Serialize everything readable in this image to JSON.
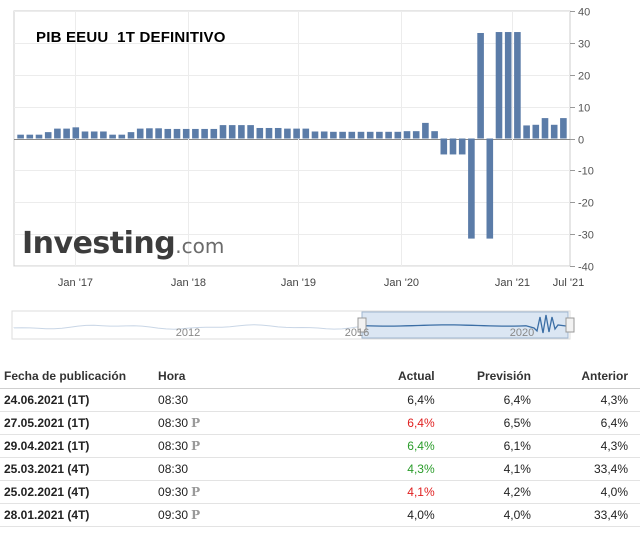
{
  "chart_title": "PIB EEUU  1T DEFINITIVO",
  "logo": {
    "name": "Investing",
    "suffix": ".com"
  },
  "chart_data": {
    "type": "bar",
    "title": "PIB EEUU  1T DEFINITIVO",
    "ylim": [
      -40,
      40
    ],
    "yticks": [
      40,
      30,
      20,
      10,
      0,
      -10,
      -20,
      -30,
      -40
    ],
    "xtick_labels": [
      "Jan '17",
      "Jan '18",
      "Jan '19",
      "Jan '20",
      "Jan '21",
      "Jul '21"
    ],
    "grid": true,
    "values": [
      1.2,
      1.2,
      1.2,
      2.0,
      3.1,
      3.1,
      3.5,
      2.2,
      2.2,
      2.2,
      1.2,
      1.2,
      2.0,
      3.1,
      3.2,
      3.2,
      3.0,
      3.0,
      3.0,
      3.0,
      3.0,
      3.0,
      4.2,
      4.2,
      4.2,
      4.2,
      3.3,
      3.3,
      3.3,
      3.1,
      3.1,
      3.1,
      2.2,
      2.2,
      2.1,
      2.1,
      2.1,
      2.1,
      2.1,
      2.1,
      2.1,
      2.1,
      2.3,
      2.3,
      4.9,
      2.3,
      -5.0,
      -5.0,
      -5.0,
      -31.4,
      33.1,
      -31.4,
      33.4,
      33.4,
      33.4,
      4.1,
      4.3,
      6.4,
      4.3,
      6.4
    ]
  },
  "navigator": {
    "labels": [
      "2012",
      "2016",
      "2020"
    ]
  },
  "table": {
    "headers": {
      "date": "Fecha de publicación",
      "hour": "Hora",
      "actual": "Actual",
      "forecast": "Previsión",
      "previous": "Anterior"
    },
    "rows": [
      {
        "date": "24.06.2021 (1T)",
        "hour": "08:30",
        "prelim": "",
        "actual": "6,4%",
        "actual_status": "neutral",
        "forecast": "6,4%",
        "previous": "4,3%"
      },
      {
        "date": "27.05.2021 (1T)",
        "hour": "08:30",
        "prelim": "P",
        "actual": "6,4%",
        "actual_status": "worse",
        "forecast": "6,5%",
        "previous": "6,4%"
      },
      {
        "date": "29.04.2021 (1T)",
        "hour": "08:30",
        "prelim": "P",
        "actual": "6,4%",
        "actual_status": "better",
        "forecast": "6,1%",
        "previous": "4,3%"
      },
      {
        "date": "25.03.2021 (4T)",
        "hour": "08:30",
        "prelim": "",
        "actual": "4,3%",
        "actual_status": "better",
        "forecast": "4,1%",
        "previous": "33,4%"
      },
      {
        "date": "25.02.2021 (4T)",
        "hour": "09:30",
        "prelim": "P",
        "actual": "4,1%",
        "actual_status": "worse",
        "forecast": "4,2%",
        "previous": "4,0%"
      },
      {
        "date": "28.01.2021 (4T)",
        "hour": "09:30",
        "prelim": "P",
        "actual": "4,0%",
        "actual_status": "neutral",
        "forecast": "4,0%",
        "previous": "33,4%"
      }
    ]
  },
  "colors": {
    "bar": "#5b7ca8",
    "better": "#2a9c2a",
    "worse": "#e02020"
  }
}
